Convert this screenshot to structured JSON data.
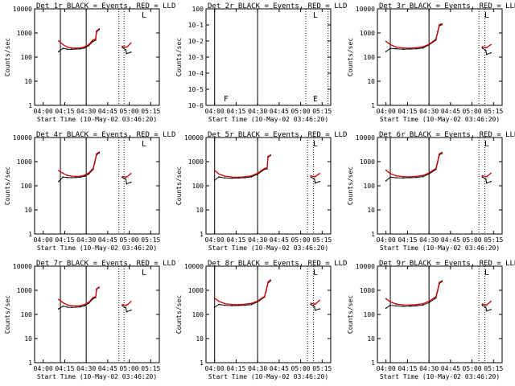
{
  "colors": {
    "events": "#000000",
    "lld": "#cc0000",
    "axis": "#000000",
    "background": "#ffffff"
  },
  "chart_data": [
    {
      "type": "line",
      "title": "Det 1r BLACK = Events, RED = LLD",
      "xlabel": "Start Time (10-May-02 03:46:20)",
      "ylabel": "Counts/sec",
      "yscale": "log",
      "ylim": [
        1,
        10000
      ],
      "y_ticklabels": [
        "1",
        "10",
        "100",
        "1000",
        "10000"
      ],
      "x_ticklabels": [
        "04:00",
        "04:15",
        "04:30",
        "04:45",
        "05:00",
        "05:15"
      ],
      "series": [
        {
          "x": [
            4.18,
            4.23,
            4.28,
            4.33,
            4.38,
            4.43,
            4.48,
            4.53,
            4.58,
            4.61,
            4.62,
            4.65
          ],
          "values": [
            170,
            230,
            210,
            210,
            215,
            220,
            240,
            300,
            450,
            500,
            1100,
            1400
          ]
        },
        {
          "x": [
            4.18,
            4.23,
            4.28,
            4.33,
            4.38,
            4.43,
            4.48,
            4.53,
            4.58,
            4.61,
            4.62,
            4.65
          ],
          "values": [
            470,
            330,
            260,
            240,
            235,
            240,
            265,
            330,
            520,
            560,
            1200,
            1500
          ]
        },
        {
          "x": [
            4.92,
            4.96,
            4.97,
            5.02
          ],
          "values": [
            250,
            200,
            140,
            160
          ]
        },
        {
          "x": [
            4.92,
            4.96,
            4.97,
            5.02
          ],
          "values": [
            280,
            260,
            260,
            380
          ]
        }
      ],
      "vertical_lines_solid": [
        4.2,
        4.5
      ],
      "vertical_lines_dotted": [
        4.88,
        4.94
      ],
      "markers": [
        "L"
      ]
    },
    {
      "type": "line",
      "title": "Det 2r BLACK = Events, RED = LLD",
      "xlabel": "Start Time (10-May-02 03:46:20)",
      "ylabel": "Counts/sec",
      "yscale": "log",
      "y_ticklabels": [
        "10-6",
        "10-5",
        "10-4",
        "10-3",
        "10-2",
        "10-1",
        "100"
      ],
      "x_ticklabels": [
        "04:00",
        "04:15",
        "04:30",
        "04:45",
        "05:00",
        "05:15"
      ],
      "series": [],
      "vertical_lines_solid": [
        4.0,
        4.5
      ],
      "vertical_lines_dotted": [
        5.06,
        5.32
      ],
      "markers": [
        "L",
        "F",
        "E"
      ]
    },
    {
      "type": "line",
      "title": "Det 3r BLACK = Events, RED = LLD",
      "xlabel": "Start Time (10-May-02 03:46:20)",
      "ylabel": "Counts/sec",
      "yscale": "log",
      "ylim": [
        1,
        10000
      ],
      "y_ticklabels": [
        "1",
        "10",
        "100",
        "1000",
        "10000"
      ],
      "x_ticklabels": [
        "04:00",
        "04:15",
        "04:30",
        "04:45",
        "05:00",
        "05:15"
      ],
      "series": [
        {
          "x": [
            4.0,
            4.05,
            4.12,
            4.2,
            4.28,
            4.35,
            4.43,
            4.5,
            4.58,
            4.6,
            4.62,
            4.65
          ],
          "values": [
            170,
            230,
            220,
            210,
            215,
            220,
            240,
            320,
            500,
            1000,
            2000,
            2200
          ]
        },
        {
          "x": [
            4.0,
            4.05,
            4.12,
            4.2,
            4.28,
            4.35,
            4.43,
            4.5,
            4.58,
            4.6,
            4.62,
            4.65
          ],
          "values": [
            450,
            330,
            260,
            240,
            235,
            245,
            270,
            340,
            550,
            1100,
            2200,
            2400
          ]
        },
        {
          "x": [
            5.12,
            5.16,
            5.17,
            5.22
          ],
          "values": [
            240,
            190,
            130,
            150
          ]
        },
        {
          "x": [
            5.12,
            5.16,
            5.17,
            5.22
          ],
          "values": [
            270,
            250,
            250,
            330
          ]
        }
      ],
      "vertical_lines_solid": [
        4.05,
        4.5
      ],
      "vertical_lines_dotted": [
        5.08,
        5.15
      ],
      "markers": [
        "L"
      ]
    },
    {
      "type": "line",
      "title": "Det 4r BLACK = Events, RED = LLD",
      "xlabel": "Start Time (10-May-02 03:46:20)",
      "ylabel": "Counts/sec",
      "yscale": "log",
      "ylim": [
        1,
        10000
      ],
      "y_ticklabels": [
        "1",
        "10",
        "100",
        "1000",
        "10000"
      ],
      "x_ticklabels": [
        "04:00",
        "04:15",
        "04:30",
        "04:45",
        "05:00",
        "05:15"
      ],
      "series": [
        {
          "x": [
            4.18,
            4.23,
            4.28,
            4.33,
            4.38,
            4.43,
            4.48,
            4.53,
            4.58,
            4.6,
            4.62,
            4.65
          ],
          "values": [
            150,
            230,
            220,
            215,
            220,
            225,
            245,
            310,
            480,
            900,
            1900,
            2300
          ]
        },
        {
          "x": [
            4.18,
            4.23,
            4.28,
            4.33,
            4.38,
            4.43,
            4.48,
            4.53,
            4.58,
            4.6,
            4.62,
            4.65
          ],
          "values": [
            420,
            330,
            270,
            250,
            245,
            250,
            275,
            340,
            530,
            1000,
            2100,
            2500
          ]
        },
        {
          "x": [
            4.92,
            4.96,
            4.97,
            5.02
          ],
          "values": [
            220,
            190,
            120,
            140
          ]
        },
        {
          "x": [
            4.92,
            4.96,
            4.97,
            5.02
          ],
          "values": [
            240,
            230,
            230,
            320
          ]
        }
      ],
      "vertical_lines_solid": [
        4.2,
        4.5
      ],
      "vertical_lines_dotted": [
        4.88,
        4.94
      ],
      "markers": [
        "L"
      ]
    },
    {
      "type": "line",
      "title": "Det 5r BLACK = Events, RED = LLD",
      "xlabel": "Start Time (10-May-02 03:46:20)",
      "ylabel": "Counts/sec",
      "yscale": "log",
      "ylim": [
        1,
        10000
      ],
      "y_ticklabels": [
        "1",
        "10",
        "100",
        "1000",
        "10000"
      ],
      "x_ticklabels": [
        "04:00",
        "04:15",
        "04:30",
        "04:45",
        "05:00",
        "05:15"
      ],
      "series": [
        {
          "x": [
            4.0,
            4.05,
            4.12,
            4.2,
            4.28,
            4.35,
            4.43,
            4.5,
            4.58,
            4.61,
            4.62,
            4.65
          ],
          "values": [
            170,
            230,
            210,
            205,
            210,
            215,
            235,
            300,
            480,
            500,
            1500,
            1800
          ]
        },
        {
          "x": [
            4.0,
            4.05,
            4.12,
            4.2,
            4.28,
            4.35,
            4.43,
            4.5,
            4.58,
            4.61,
            4.62,
            4.65
          ],
          "values": [
            430,
            310,
            250,
            230,
            225,
            235,
            260,
            330,
            520,
            560,
            1600,
            1900
          ]
        },
        {
          "x": [
            5.12,
            5.16,
            5.17,
            5.22
          ],
          "values": [
            230,
            190,
            130,
            150
          ]
        },
        {
          "x": [
            5.12,
            5.16,
            5.17,
            5.22
          ],
          "values": [
            260,
            240,
            240,
            320
          ]
        }
      ],
      "vertical_lines_solid": [
        4.0,
        4.5
      ],
      "vertical_lines_dotted": [
        5.08,
        5.15
      ],
      "markers": [
        "L"
      ]
    },
    {
      "type": "line",
      "title": "Det 6r BLACK = Events, RED = LLD",
      "xlabel": "Start Time (10-May-02 03:46:20)",
      "ylabel": "Counts/sec",
      "yscale": "log",
      "ylim": [
        1,
        10000
      ],
      "y_ticklabels": [
        "1",
        "10",
        "100",
        "1000",
        "10000"
      ],
      "x_ticklabels": [
        "04:00",
        "04:15",
        "04:30",
        "04:45",
        "05:00",
        "05:15"
      ],
      "series": [
        {
          "x": [
            4.0,
            4.05,
            4.12,
            4.2,
            4.28,
            4.35,
            4.43,
            4.5,
            4.58,
            4.6,
            4.62,
            4.65
          ],
          "values": [
            160,
            225,
            215,
            210,
            215,
            220,
            240,
            310,
            470,
            900,
            1900,
            2200
          ]
        },
        {
          "x": [
            4.0,
            4.05,
            4.12,
            4.2,
            4.28,
            4.35,
            4.43,
            4.5,
            4.58,
            4.6,
            4.62,
            4.65
          ],
          "values": [
            440,
            320,
            260,
            240,
            235,
            245,
            270,
            340,
            520,
            1000,
            2100,
            2400
          ]
        },
        {
          "x": [
            5.12,
            5.16,
            5.17,
            5.22
          ],
          "values": [
            230,
            190,
            130,
            150
          ]
        },
        {
          "x": [
            5.12,
            5.16,
            5.17,
            5.22
          ],
          "values": [
            260,
            240,
            240,
            330
          ]
        }
      ],
      "vertical_lines_solid": [
        4.05,
        4.5
      ],
      "vertical_lines_dotted": [
        5.08,
        5.15
      ],
      "markers": [
        "L"
      ]
    },
    {
      "type": "line",
      "title": "Det 7r BLACK = Events, RED = LLD",
      "xlabel": "Start Time (10-May-02 03:46:20)",
      "ylabel": "Counts/sec",
      "yscale": "log",
      "ylim": [
        1,
        10000
      ],
      "y_ticklabels": [
        "1",
        "10",
        "100",
        "1000",
        "10000"
      ],
      "x_ticklabels": [
        "04:00",
        "04:15",
        "04:30",
        "04:45",
        "05:00",
        "05:15"
      ],
      "series": [
        {
          "x": [
            4.18,
            4.23,
            4.28,
            4.33,
            4.38,
            4.43,
            4.48,
            4.53,
            4.58,
            4.61,
            4.62,
            4.65
          ],
          "values": [
            170,
            220,
            200,
            195,
            200,
            205,
            225,
            290,
            450,
            500,
            1100,
            1300
          ]
        },
        {
          "x": [
            4.18,
            4.23,
            4.28,
            4.33,
            4.38,
            4.43,
            4.48,
            4.53,
            4.58,
            4.61,
            4.62,
            4.65
          ],
          "values": [
            420,
            310,
            250,
            230,
            225,
            230,
            255,
            320,
            500,
            540,
            1150,
            1350
          ]
        },
        {
          "x": [
            4.92,
            4.96,
            4.97,
            5.02
          ],
          "values": [
            230,
            190,
            130,
            150
          ]
        },
        {
          "x": [
            4.92,
            4.96,
            4.97,
            5.02
          ],
          "values": [
            260,
            240,
            240,
            340
          ]
        }
      ],
      "vertical_lines_solid": [
        4.2,
        4.5
      ],
      "vertical_lines_dotted": [
        4.88,
        4.94
      ],
      "markers": [
        "L"
      ]
    },
    {
      "type": "line",
      "title": "Det 8r BLACK = Events, RED = LLD",
      "xlabel": "Start Time (10-May-02 03:46:20)",
      "ylabel": "Counts/sec",
      "yscale": "log",
      "ylim": [
        1,
        10000
      ],
      "y_ticklabels": [
        "1",
        "10",
        "100",
        "1000",
        "10000"
      ],
      "x_ticklabels": [
        "04:00",
        "04:15",
        "04:30",
        "04:45",
        "05:00",
        "05:15"
      ],
      "series": [
        {
          "x": [
            4.0,
            4.05,
            4.12,
            4.2,
            4.28,
            4.35,
            4.43,
            4.5,
            4.58,
            4.6,
            4.62,
            4.65
          ],
          "values": [
            200,
            260,
            240,
            230,
            235,
            240,
            260,
            330,
            520,
            900,
            2000,
            2500
          ]
        },
        {
          "x": [
            4.0,
            4.05,
            4.12,
            4.2,
            4.28,
            4.35,
            4.43,
            4.5,
            4.58,
            4.6,
            4.62,
            4.65
          ],
          "values": [
            470,
            350,
            280,
            260,
            255,
            265,
            290,
            360,
            560,
            1000,
            2200,
            2700
          ]
        },
        {
          "x": [
            5.12,
            5.16,
            5.17,
            5.22
          ],
          "values": [
            260,
            210,
            150,
            170
          ]
        },
        {
          "x": [
            5.12,
            5.16,
            5.17,
            5.22
          ],
          "values": [
            290,
            270,
            270,
            380
          ]
        }
      ],
      "vertical_lines_solid": [
        4.0,
        4.5
      ],
      "vertical_lines_dotted": [
        5.08,
        5.15
      ],
      "markers": [
        "L"
      ]
    },
    {
      "type": "line",
      "title": "Det 9r BLACK = Events, RED = LLD",
      "xlabel": "Start Time (10-May-02 03:46:20)",
      "ylabel": "Counts/sec",
      "yscale": "log",
      "ylim": [
        1,
        10000
      ],
      "y_ticklabels": [
        "1",
        "10",
        "100",
        "1000",
        "10000"
      ],
      "x_ticklabels": [
        "04:00",
        "04:15",
        "04:30",
        "04:45",
        "05:00",
        "05:15"
      ],
      "series": [
        {
          "x": [
            4.0,
            4.05,
            4.12,
            4.2,
            4.28,
            4.35,
            4.43,
            4.5,
            4.58,
            4.6,
            4.62,
            4.65
          ],
          "values": [
            180,
            240,
            225,
            215,
            220,
            225,
            245,
            310,
            480,
            900,
            1900,
            2300
          ]
        },
        {
          "x": [
            4.0,
            4.05,
            4.12,
            4.2,
            4.28,
            4.35,
            4.43,
            4.5,
            4.58,
            4.6,
            4.62,
            4.65
          ],
          "values": [
            450,
            330,
            270,
            250,
            245,
            255,
            280,
            350,
            540,
            1000,
            2100,
            2500
          ]
        },
        {
          "x": [
            5.12,
            5.16,
            5.17,
            5.22
          ],
          "values": [
            240,
            200,
            140,
            160
          ]
        },
        {
          "x": [
            5.12,
            5.16,
            5.17,
            5.22
          ],
          "values": [
            270,
            250,
            250,
            350
          ]
        }
      ],
      "vertical_lines_solid": [
        4.05,
        4.5
      ],
      "vertical_lines_dotted": [
        5.08,
        5.15
      ],
      "markers": [
        "L"
      ]
    }
  ]
}
